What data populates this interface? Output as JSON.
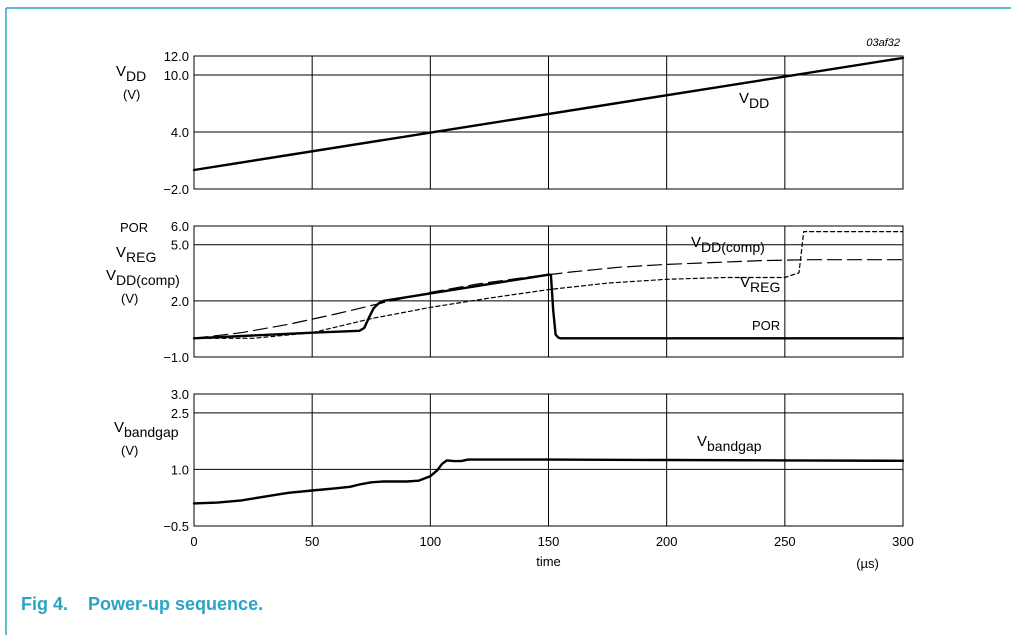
{
  "figure_id": "03af32",
  "caption": {
    "prefix": "Fig 4.",
    "title": "Power-up sequence."
  },
  "colors": {
    "frame": "#2aa3c4",
    "caption": "#2aa3c4",
    "lines": "#000000"
  },
  "chart_data": [
    {
      "type": "line",
      "panel": "vdd",
      "ylabel": {
        "main": "V",
        "sub": "DD",
        "unit": "(V)"
      },
      "ylim": [
        -2.0,
        12.0
      ],
      "yticks": [
        "12.0",
        "10.0",
        "4.0",
        "−2.0"
      ],
      "ytick_values": [
        12.0,
        10.0,
        4.0,
        -2.0
      ],
      "xlim": [
        0,
        300
      ],
      "grid": true,
      "series": [
        {
          "name": "V_DD",
          "label_main": "V",
          "label_sub": "DD",
          "style": "solid",
          "x": [
            0,
            300
          ],
          "y": [
            0.0,
            11.8
          ]
        }
      ]
    },
    {
      "type": "line",
      "panel": "por-vreg-vddcomp",
      "ylabel": {
        "line1": "POR",
        "line2_main": "V",
        "line2_sub": "REG",
        "line3_main": "V",
        "line3_sub": "DD(comp)",
        "unit": "(V)"
      },
      "ylim": [
        -1.0,
        6.0
      ],
      "yticks": [
        "6.0",
        "5.0",
        "2.0",
        "−1.0"
      ],
      "ytick_values": [
        6.0,
        5.0,
        2.0,
        -1.0
      ],
      "xlim": [
        0,
        300
      ],
      "grid": true,
      "series": [
        {
          "name": "V_DD(comp)",
          "label_main": "V",
          "label_sub": "DD(comp)",
          "style": "long-dash",
          "x": [
            0,
            20,
            40,
            60,
            80,
            100,
            120,
            140,
            160,
            180,
            200,
            220,
            240,
            260,
            300
          ],
          "y": [
            0.0,
            0.3,
            0.75,
            1.3,
            1.9,
            2.45,
            2.9,
            3.25,
            3.55,
            3.8,
            3.95,
            4.05,
            4.15,
            4.2,
            4.2
          ]
        },
        {
          "name": "V_REG",
          "label_main": "V",
          "label_sub": "REG",
          "style": "short-dash",
          "x": [
            0,
            25,
            50,
            75,
            100,
            125,
            150,
            175,
            200,
            225,
            250,
            256,
            258,
            300
          ],
          "y": [
            0.0,
            0.0,
            0.3,
            1.05,
            1.65,
            2.15,
            2.6,
            2.95,
            3.15,
            3.25,
            3.25,
            3.5,
            5.7,
            5.7
          ]
        },
        {
          "name": "POR",
          "label_main": "POR",
          "label_sub": "",
          "style": "solid",
          "x": [
            0,
            25,
            50,
            70,
            72,
            74,
            76,
            78,
            80,
            100,
            120,
            140,
            150,
            151,
            152,
            153,
            154,
            155,
            160,
            200,
            250,
            300
          ],
          "y": [
            0.0,
            0.15,
            0.3,
            0.4,
            0.55,
            1.1,
            1.6,
            1.85,
            2.0,
            2.4,
            2.8,
            3.2,
            3.4,
            3.4,
            1.5,
            0.2,
            0.05,
            0.0,
            0.0,
            0.0,
            0.0,
            0.0
          ]
        }
      ]
    },
    {
      "type": "line",
      "panel": "vbandgap",
      "ylabel": {
        "main": "V",
        "sub": "bandgap",
        "unit": "(V)"
      },
      "ylim": [
        -0.5,
        3.0
      ],
      "yticks": [
        "3.0",
        "2.5",
        "1.0",
        "−0.5"
      ],
      "ytick_values": [
        3.0,
        2.5,
        1.0,
        -0.5
      ],
      "xlim": [
        0,
        300
      ],
      "xticks": [
        "0",
        "50",
        "100",
        "150",
        "200",
        "250",
        "300"
      ],
      "xtick_values": [
        0,
        50,
        100,
        150,
        200,
        250,
        300
      ],
      "xlabel": "time",
      "xunit": "(µs)",
      "grid": true,
      "series": [
        {
          "name": "V_bandgap",
          "label_main": "V",
          "label_sub": "bandgap",
          "style": "solid",
          "x": [
            0,
            10,
            20,
            30,
            40,
            50,
            60,
            66,
            70,
            75,
            80,
            85,
            90,
            95,
            100,
            103,
            105,
            107,
            110,
            113,
            116,
            120,
            150,
            200,
            250,
            300
          ],
          "y": [
            0.1,
            0.12,
            0.18,
            0.28,
            0.38,
            0.44,
            0.5,
            0.54,
            0.6,
            0.66,
            0.68,
            0.68,
            0.68,
            0.7,
            0.82,
            0.98,
            1.15,
            1.24,
            1.22,
            1.22,
            1.26,
            1.26,
            1.26,
            1.25,
            1.24,
            1.23
          ]
        }
      ]
    }
  ]
}
